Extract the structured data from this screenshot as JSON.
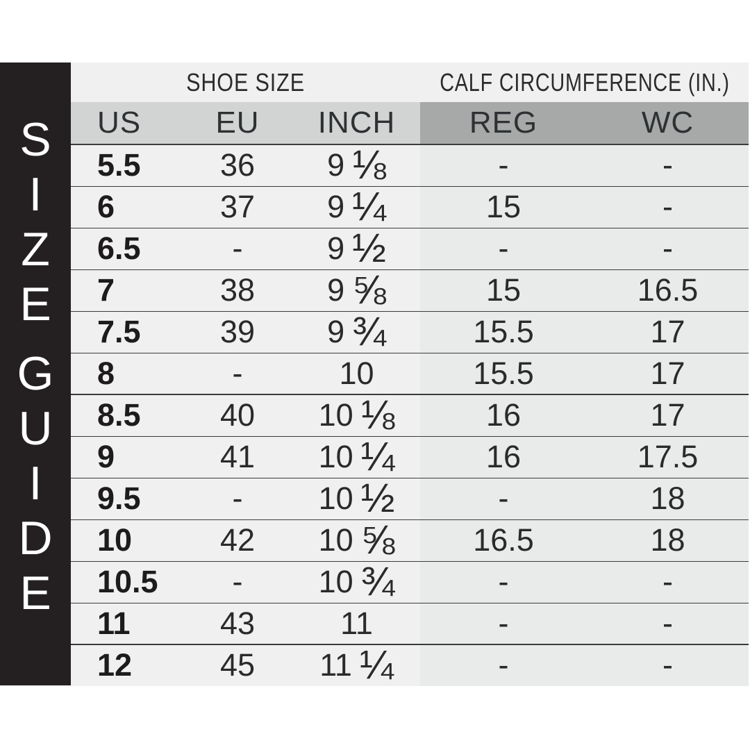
{
  "banner": {
    "title": "SIZE GUIDE",
    "letters": [
      "S",
      "I",
      "Z",
      "E",
      "G",
      "U",
      "I",
      "D",
      "E"
    ]
  },
  "chart_data": {
    "type": "table",
    "title": "SIZE GUIDE",
    "group_headers": {
      "shoe_size": "SHOE SIZE",
      "calf": "CALF CIRCUMFERENCE (IN.)"
    },
    "columns": {
      "us": "US",
      "eu": "EU",
      "inch": "INCH",
      "reg": "REG",
      "wc": "WC"
    },
    "rows": [
      {
        "us": "5.5",
        "eu": "36",
        "inch_whole": "9",
        "inch_frac": "⅛",
        "reg": "-",
        "wc": "-"
      },
      {
        "us": "6",
        "eu": "37",
        "inch_whole": "9",
        "inch_frac": "¼",
        "reg": "15",
        "wc": "-"
      },
      {
        "us": "6.5",
        "eu": "-",
        "inch_whole": "9",
        "inch_frac": "½",
        "reg": "-",
        "wc": "-"
      },
      {
        "us": "7",
        "eu": "38",
        "inch_whole": "9",
        "inch_frac": "⅝",
        "reg": "15",
        "wc": "16.5"
      },
      {
        "us": "7.5",
        "eu": "39",
        "inch_whole": "9",
        "inch_frac": "¾",
        "reg": "15.5",
        "wc": "17"
      },
      {
        "us": "8",
        "eu": "-",
        "inch_whole": "10",
        "inch_frac": "",
        "reg": "15.5",
        "wc": "17"
      },
      {
        "us": "8.5",
        "eu": "40",
        "inch_whole": "10",
        "inch_frac": "⅛",
        "reg": "16",
        "wc": "17"
      },
      {
        "us": "9",
        "eu": "41",
        "inch_whole": "10",
        "inch_frac": "¼",
        "reg": "16",
        "wc": "17.5"
      },
      {
        "us": "9.5",
        "eu": "-",
        "inch_whole": "10",
        "inch_frac": "½",
        "reg": "-",
        "wc": "18"
      },
      {
        "us": "10",
        "eu": "42",
        "inch_whole": "10",
        "inch_frac": "⅝",
        "reg": "16.5",
        "wc": "18"
      },
      {
        "us": "10.5",
        "eu": "-",
        "inch_whole": "10",
        "inch_frac": "¾",
        "reg": "-",
        "wc": "-"
      },
      {
        "us": "11",
        "eu": "43",
        "inch_whole": "11",
        "inch_frac": "",
        "reg": "-",
        "wc": "-"
      },
      {
        "us": "12",
        "eu": "45",
        "inch_whole": "11",
        "inch_frac": "¼",
        "reg": "-",
        "wc": "-"
      }
    ]
  },
  "colors": {
    "banner_bg": "#242021",
    "banner_text": "#ffffff",
    "row_left_bg": "#f0f0f1",
    "row_right_bg": "#e9eaea",
    "header_left_bg": "#d2d4d3",
    "header_right_bg": "#a7a9a8",
    "separator_line": "#3b3b3b",
    "text": "#2a2a2a",
    "page_bg": "#ffffff"
  }
}
